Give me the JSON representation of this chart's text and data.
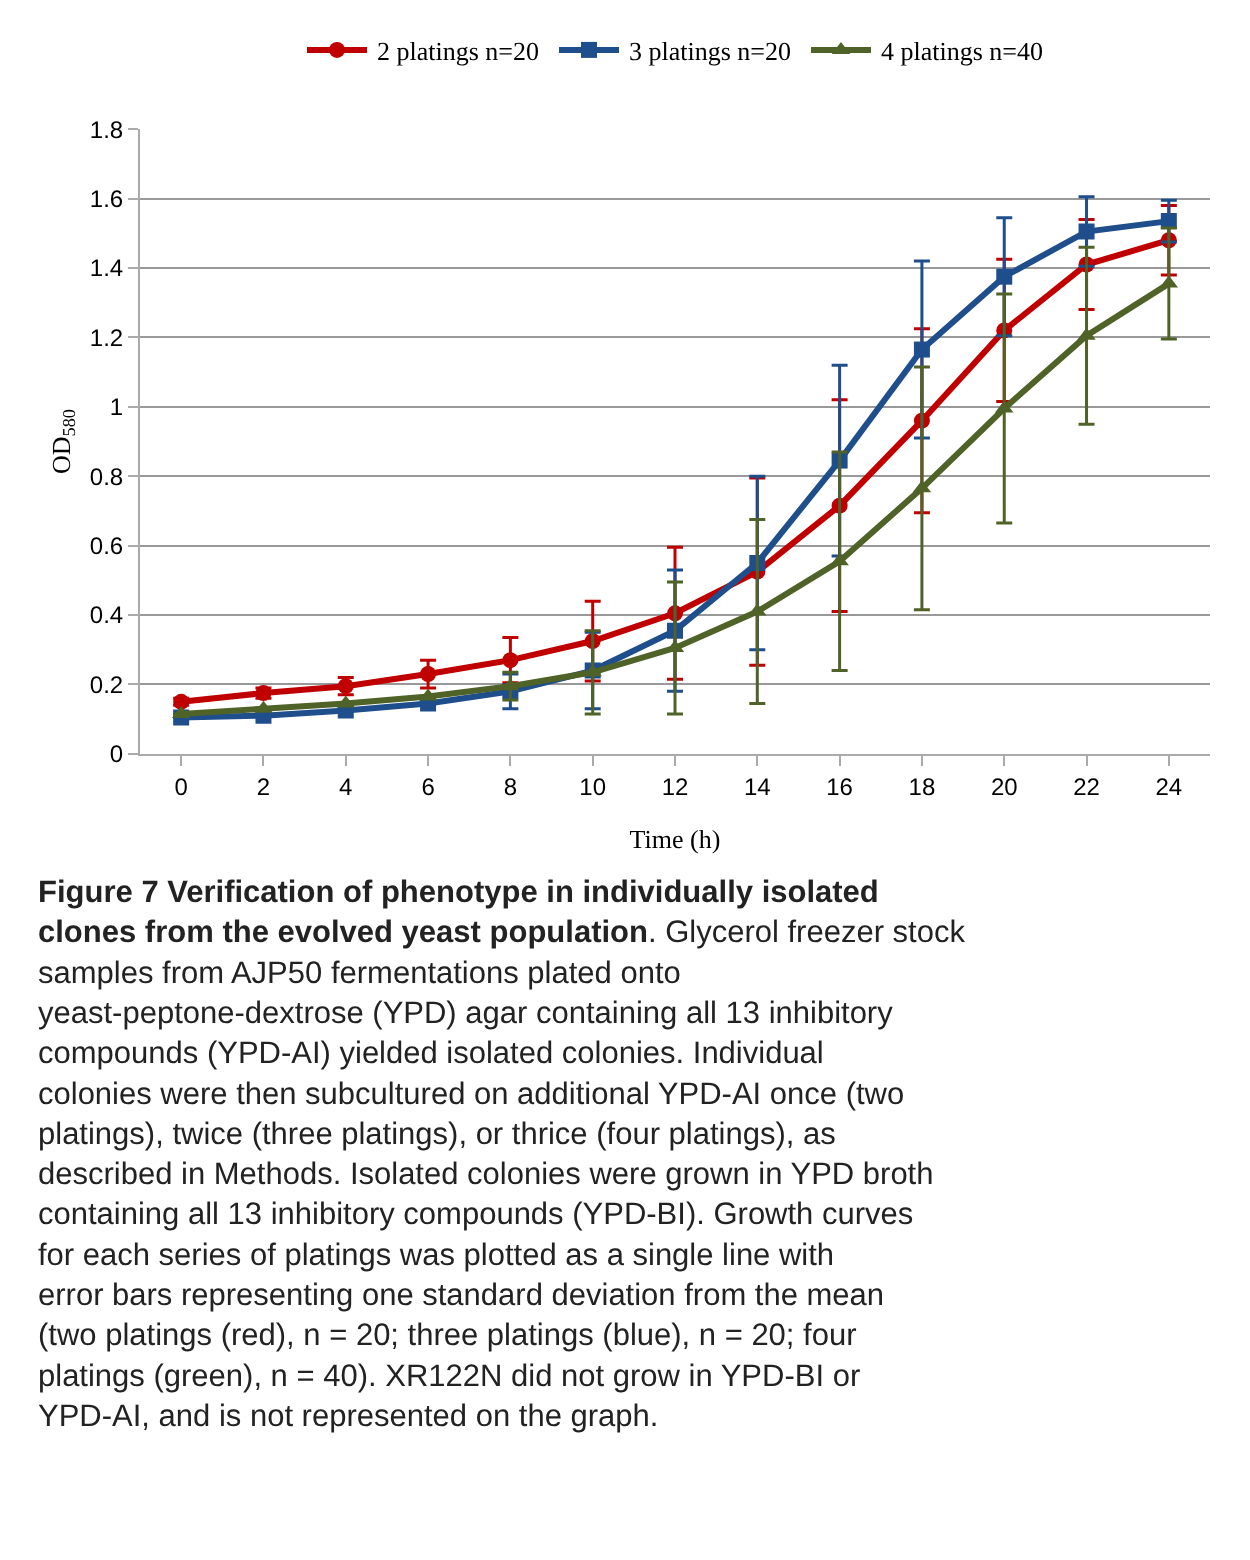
{
  "chart_data": {
    "type": "line",
    "xlabel": "Time (h)",
    "ylabel": "OD$_{580}$",
    "x": [
      0,
      2,
      4,
      6,
      8,
      10,
      12,
      14,
      16,
      18,
      20,
      22,
      24
    ],
    "xlim": [
      -1,
      25
    ],
    "xticks": [
      0,
      2,
      4,
      6,
      8,
      10,
      12,
      14,
      16,
      18,
      20,
      22,
      24
    ],
    "ylim": [
      0,
      1.8
    ],
    "yticks": [
      0,
      0.2,
      0.4,
      0.6,
      0.8,
      1,
      1.2,
      1.4,
      1.6,
      1.8
    ],
    "grid": "y",
    "legend": "top",
    "line_style": "solid",
    "series": [
      {
        "name": "2 platings n=20",
        "color": "#c00000",
        "marker": "circle",
        "values": [
          0.15,
          0.175,
          0.195,
          0.23,
          0.27,
          0.325,
          0.405,
          0.525,
          0.715,
          0.96,
          1.22,
          1.41,
          1.48
        ],
        "errors": [
          0.01,
          0.015,
          0.025,
          0.04,
          0.065,
          0.115,
          0.19,
          0.27,
          0.305,
          0.265,
          0.205,
          0.13,
          0.1
        ]
      },
      {
        "name": "3 platings n=20",
        "color": "#1f4e8c",
        "marker": "square",
        "values": [
          0.105,
          0.11,
          0.125,
          0.145,
          0.18,
          0.24,
          0.355,
          0.55,
          0.845,
          1.165,
          1.375,
          1.505,
          1.535
        ],
        "errors": [
          null,
          null,
          null,
          null,
          0.05,
          0.11,
          0.175,
          0.25,
          0.275,
          0.255,
          0.17,
          0.1,
          0.06
        ]
      },
      {
        "name": "4 platings n=40",
        "color": "#4f6228",
        "marker": "triangle",
        "values": [
          0.115,
          0.13,
          0.145,
          0.165,
          0.195,
          0.235,
          0.305,
          0.41,
          0.555,
          0.765,
          0.995,
          1.205,
          1.355
        ],
        "errors": [
          null,
          null,
          null,
          null,
          0.04,
          0.12,
          0.19,
          0.265,
          0.315,
          0.35,
          0.33,
          0.255,
          0.16
        ]
      }
    ],
    "annotations": [
      "Figure 7 Verification of phenotype in individually isolated clones from the evolved yeast population",
      ". Glycerol freezer stock samples from AJP50 fermentations plated onto yeast-peptone-dextrose (YPD) agar containing all 13 inhibitory compounds (YPD-AI) yielded isolated colonies. Individual colonies were then subcultured on additional YPD-AI once (two platings), twice (three platings), or thrice (four platings), as described in Methods. Isolated colonies were grown in YPD broth containing all 13 inhibitory compounds (YPD-BI). Growth curves for each series of platings was plotted as a single line with error bars representing one standard deviation from the mean (two platings (red), n = 20; three platings (blue), n = 20; four platings (green), n = 40). XR122N did not grow in YPD-BI or YPD-AI, and is not represented on the graph."
    ]
  }
}
